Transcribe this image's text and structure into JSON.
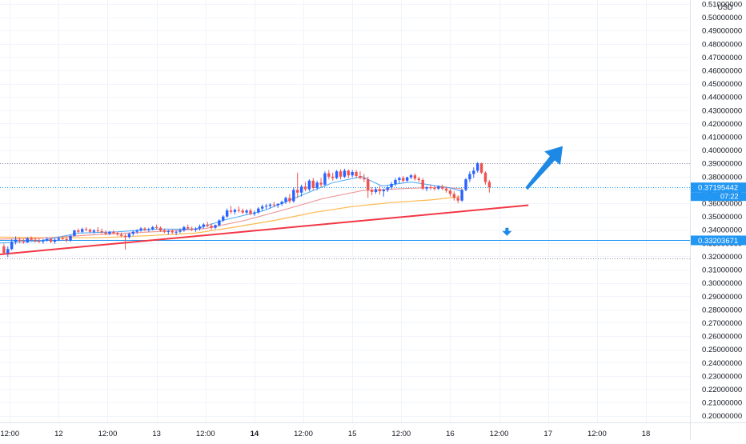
{
  "header": {
    "currency": "USD"
  },
  "price_axis": {
    "ticks": [
      "0.20000000",
      "0.21000000",
      "0.22000000",
      "0.23000000",
      "0.24000000",
      "0.25000000",
      "0.26000000",
      "0.27000000",
      "0.28000000",
      "0.29000000",
      "0.30000000",
      "0.31000000",
      "0.32000000",
      "0.33000000",
      "0.34000000",
      "0.35000000",
      "0.36000000",
      "0.37000000",
      "0.38000000",
      "0.39000000",
      "0.40000000",
      "0.41000000",
      "0.42000000",
      "0.43000000",
      "0.44000000",
      "0.45000000",
      "0.46000000",
      "0.47000000",
      "0.48000000",
      "0.49000000",
      "0.50000000",
      "0.51000000"
    ]
  },
  "time_axis": {
    "labels": [
      {
        "text": "12:00",
        "t": 0.0
      },
      {
        "text": "12",
        "t": 0.5
      },
      {
        "text": "12:00",
        "t": 1.0
      },
      {
        "text": "13",
        "t": 1.5
      },
      {
        "text": "12:00",
        "t": 2.0
      },
      {
        "text": "14",
        "t": 2.5,
        "bold": true
      },
      {
        "text": "12:00",
        "t": 3.0
      },
      {
        "text": "15",
        "t": 3.5
      },
      {
        "text": "12:00",
        "t": 4.0
      },
      {
        "text": "16",
        "t": 4.5
      },
      {
        "text": "12:00",
        "t": 5.0
      },
      {
        "text": "17",
        "t": 5.5
      },
      {
        "text": "12:00",
        "t": 6.0
      },
      {
        "text": "18",
        "t": 6.5
      }
    ]
  },
  "labels": {
    "last_price": "0.37195442",
    "countdown": "07:22",
    "level_price": "0.33203671"
  },
  "colors": {
    "up": "#2962ff",
    "down": "#ef5350",
    "trendline": "#f23645",
    "ema_fast": "#42a5f5",
    "ema_mid": "#ef9a9a",
    "ema_slow": "#ffb74d",
    "last_price_badge": "#2196f3",
    "level_line": "#2196f3",
    "arrow": "#1e88e5"
  },
  "chart_data": {
    "type": "candlestick",
    "currency": "USD",
    "ylim": [
      0.195,
      0.513
    ],
    "xlim": [
      -0.1,
      6.95
    ],
    "last_price": 0.37195442,
    "level_price": 0.33203671,
    "dotted_levels": [
      0.39,
      0.3183
    ],
    "trendline": {
      "x": [
        -0.1,
        5.3
      ],
      "y": [
        0.3215,
        0.3585
      ]
    },
    "projection_up": {
      "from": [
        5.28,
        0.371
      ],
      "to": [
        5.65,
        0.403
      ]
    },
    "projection_down": {
      "at": [
        5.08,
        0.3385
      ]
    },
    "candles": [
      [
        -0.06,
        0.3275,
        0.3295,
        0.3215,
        0.3225
      ],
      [
        -0.02,
        0.3225,
        0.3275,
        0.3195,
        0.3255
      ],
      [
        0.02,
        0.3255,
        0.333,
        0.3245,
        0.331
      ],
      [
        0.06,
        0.331,
        0.335,
        0.329,
        0.3325
      ],
      [
        0.1,
        0.3325,
        0.334,
        0.33,
        0.3315
      ],
      [
        0.14,
        0.3315,
        0.333,
        0.3295,
        0.3305
      ],
      [
        0.18,
        0.3305,
        0.3345,
        0.33,
        0.3335
      ],
      [
        0.22,
        0.3335,
        0.335,
        0.3315,
        0.3325
      ],
      [
        0.26,
        0.3325,
        0.334,
        0.3305,
        0.3315
      ],
      [
        0.3,
        0.3315,
        0.3335,
        0.33,
        0.331
      ],
      [
        0.34,
        0.331,
        0.333,
        0.3295,
        0.332
      ],
      [
        0.38,
        0.332,
        0.3345,
        0.331,
        0.333
      ],
      [
        0.42,
        0.333,
        0.334,
        0.33,
        0.331
      ],
      [
        0.46,
        0.331,
        0.3335,
        0.3295,
        0.3325
      ],
      [
        0.5,
        0.3325,
        0.335,
        0.3315,
        0.3335
      ],
      [
        0.54,
        0.3335,
        0.3355,
        0.332,
        0.333
      ],
      [
        0.58,
        0.333,
        0.3345,
        0.3305,
        0.332
      ],
      [
        0.62,
        0.332,
        0.336,
        0.331,
        0.3355
      ],
      [
        0.66,
        0.3355,
        0.34,
        0.335,
        0.3395
      ],
      [
        0.7,
        0.3395,
        0.341,
        0.337,
        0.3385
      ],
      [
        0.74,
        0.3385,
        0.3415,
        0.3375,
        0.3405
      ],
      [
        0.78,
        0.3405,
        0.342,
        0.339,
        0.34
      ],
      [
        0.82,
        0.34,
        0.341,
        0.3375,
        0.3385
      ],
      [
        0.86,
        0.3385,
        0.3405,
        0.337,
        0.3395
      ],
      [
        0.9,
        0.3395,
        0.342,
        0.338,
        0.339
      ],
      [
        0.94,
        0.339,
        0.341,
        0.337,
        0.338
      ],
      [
        0.98,
        0.338,
        0.3395,
        0.336,
        0.337
      ],
      [
        1.02,
        0.337,
        0.339,
        0.336,
        0.3385
      ],
      [
        1.06,
        0.3385,
        0.3395,
        0.3365,
        0.3375
      ],
      [
        1.1,
        0.3375,
        0.3385,
        0.3355,
        0.3365
      ],
      [
        1.14,
        0.3365,
        0.338,
        0.3345,
        0.3355
      ],
      [
        1.18,
        0.3355,
        0.337,
        0.325,
        0.3345
      ],
      [
        1.22,
        0.3345,
        0.338,
        0.3335,
        0.337
      ],
      [
        1.26,
        0.337,
        0.3395,
        0.3355,
        0.3385
      ],
      [
        1.3,
        0.3385,
        0.3405,
        0.337,
        0.3395
      ],
      [
        1.34,
        0.3395,
        0.342,
        0.3385,
        0.341
      ],
      [
        1.38,
        0.341,
        0.342,
        0.339,
        0.34
      ],
      [
        1.42,
        0.34,
        0.3415,
        0.3385,
        0.3405
      ],
      [
        1.46,
        0.3405,
        0.343,
        0.3395,
        0.342
      ],
      [
        1.5,
        0.342,
        0.344,
        0.3405,
        0.3415
      ],
      [
        1.54,
        0.3415,
        0.3425,
        0.3385,
        0.3395
      ],
      [
        1.58,
        0.3395,
        0.341,
        0.3375,
        0.3385
      ],
      [
        1.62,
        0.3385,
        0.34,
        0.3365,
        0.339
      ],
      [
        1.66,
        0.339,
        0.3405,
        0.337,
        0.338
      ],
      [
        1.7,
        0.338,
        0.3395,
        0.336,
        0.3385
      ],
      [
        1.74,
        0.3385,
        0.341,
        0.3375,
        0.3395
      ],
      [
        1.78,
        0.3395,
        0.343,
        0.3385,
        0.342
      ],
      [
        1.82,
        0.342,
        0.344,
        0.34,
        0.341
      ],
      [
        1.86,
        0.341,
        0.3425,
        0.339,
        0.34
      ],
      [
        1.9,
        0.34,
        0.342,
        0.3385,
        0.341
      ],
      [
        1.94,
        0.341,
        0.344,
        0.3395,
        0.3425
      ],
      [
        1.98,
        0.3425,
        0.345,
        0.341,
        0.344
      ],
      [
        2.02,
        0.344,
        0.346,
        0.342,
        0.343
      ],
      [
        2.06,
        0.343,
        0.345,
        0.34,
        0.3415
      ],
      [
        2.1,
        0.3415,
        0.344,
        0.3405,
        0.3435
      ],
      [
        2.14,
        0.3435,
        0.348,
        0.3425,
        0.347
      ],
      [
        2.18,
        0.347,
        0.351,
        0.346,
        0.35
      ],
      [
        2.22,
        0.35,
        0.356,
        0.349,
        0.3545
      ],
      [
        2.26,
        0.3545,
        0.358,
        0.352,
        0.3535
      ],
      [
        2.3,
        0.3535,
        0.356,
        0.3515,
        0.355
      ],
      [
        2.34,
        0.355,
        0.3575,
        0.353,
        0.3545
      ],
      [
        2.38,
        0.3545,
        0.356,
        0.352,
        0.353
      ],
      [
        2.42,
        0.353,
        0.3555,
        0.3515,
        0.3545
      ],
      [
        2.46,
        0.3545,
        0.356,
        0.351,
        0.352
      ],
      [
        2.5,
        0.352,
        0.3545,
        0.3505,
        0.353
      ],
      [
        2.54,
        0.353,
        0.357,
        0.352,
        0.356
      ],
      [
        2.58,
        0.356,
        0.359,
        0.354,
        0.3575
      ],
      [
        2.62,
        0.3575,
        0.3595,
        0.3555,
        0.358
      ],
      [
        2.66,
        0.358,
        0.36,
        0.356,
        0.359
      ],
      [
        2.7,
        0.359,
        0.361,
        0.357,
        0.3585
      ],
      [
        2.74,
        0.3585,
        0.36,
        0.3565,
        0.3595
      ],
      [
        2.78,
        0.3595,
        0.362,
        0.358,
        0.361
      ],
      [
        2.82,
        0.361,
        0.365,
        0.3595,
        0.364
      ],
      [
        2.86,
        0.364,
        0.367,
        0.36,
        0.3615
      ],
      [
        2.9,
        0.3615,
        0.372,
        0.3605,
        0.37
      ],
      [
        2.94,
        0.37,
        0.383,
        0.364,
        0.368
      ],
      [
        2.98,
        0.368,
        0.374,
        0.365,
        0.3725
      ],
      [
        3.02,
        0.3725,
        0.376,
        0.369,
        0.3705
      ],
      [
        3.06,
        0.3705,
        0.378,
        0.369,
        0.377
      ],
      [
        3.1,
        0.377,
        0.379,
        0.37,
        0.3715
      ],
      [
        3.14,
        0.3715,
        0.377,
        0.37,
        0.3755
      ],
      [
        3.18,
        0.3755,
        0.379,
        0.372,
        0.374
      ],
      [
        3.22,
        0.374,
        0.384,
        0.3725,
        0.3825
      ],
      [
        3.26,
        0.3825,
        0.385,
        0.378,
        0.38
      ],
      [
        3.3,
        0.38,
        0.383,
        0.377,
        0.379
      ],
      [
        3.34,
        0.379,
        0.385,
        0.378,
        0.384
      ],
      [
        3.38,
        0.384,
        0.3855,
        0.378,
        0.38
      ],
      [
        3.42,
        0.38,
        0.386,
        0.379,
        0.3845
      ],
      [
        3.46,
        0.3845,
        0.3855,
        0.379,
        0.381
      ],
      [
        3.5,
        0.381,
        0.385,
        0.3795,
        0.3835
      ],
      [
        3.54,
        0.3835,
        0.385,
        0.379,
        0.3805
      ],
      [
        3.58,
        0.3805,
        0.384,
        0.378,
        0.379
      ],
      [
        3.62,
        0.379,
        0.382,
        0.376,
        0.378
      ],
      [
        3.66,
        0.378,
        0.38,
        0.364,
        0.37
      ],
      [
        3.7,
        0.37,
        0.372,
        0.366,
        0.3685
      ],
      [
        3.74,
        0.3685,
        0.372,
        0.367,
        0.3705
      ],
      [
        3.78,
        0.3705,
        0.373,
        0.3665,
        0.369
      ],
      [
        3.82,
        0.369,
        0.371,
        0.365,
        0.37
      ],
      [
        3.86,
        0.37,
        0.373,
        0.3685,
        0.372
      ],
      [
        3.9,
        0.372,
        0.376,
        0.3705,
        0.3745
      ],
      [
        3.94,
        0.3745,
        0.379,
        0.373,
        0.3775
      ],
      [
        3.98,
        0.3775,
        0.38,
        0.375,
        0.379
      ],
      [
        4.02,
        0.379,
        0.3805,
        0.3755,
        0.377
      ],
      [
        4.06,
        0.377,
        0.38,
        0.376,
        0.3795
      ],
      [
        4.1,
        0.3795,
        0.382,
        0.378,
        0.381
      ],
      [
        4.14,
        0.381,
        0.3825,
        0.377,
        0.3785
      ],
      [
        4.18,
        0.3785,
        0.38,
        0.376,
        0.3775
      ],
      [
        4.22,
        0.3775,
        0.379,
        0.37,
        0.371
      ],
      [
        4.26,
        0.371,
        0.373,
        0.369,
        0.372
      ],
      [
        4.3,
        0.372,
        0.374,
        0.37,
        0.3715
      ],
      [
        4.34,
        0.3715,
        0.373,
        0.3695,
        0.371
      ],
      [
        4.38,
        0.371,
        0.3735,
        0.37,
        0.3725
      ],
      [
        4.42,
        0.3725,
        0.374,
        0.37,
        0.371
      ],
      [
        4.46,
        0.371,
        0.3725,
        0.368,
        0.3695
      ],
      [
        4.5,
        0.3695,
        0.371,
        0.365,
        0.367
      ],
      [
        4.54,
        0.367,
        0.369,
        0.362,
        0.364
      ],
      [
        4.58,
        0.364,
        0.366,
        0.36,
        0.362
      ],
      [
        4.62,
        0.362,
        0.371,
        0.361,
        0.37
      ],
      [
        4.66,
        0.37,
        0.379,
        0.369,
        0.378
      ],
      [
        4.7,
        0.378,
        0.384,
        0.376,
        0.382
      ],
      [
        4.74,
        0.382,
        0.387,
        0.379,
        0.3845
      ],
      [
        4.78,
        0.3845,
        0.391,
        0.383,
        0.39
      ],
      [
        4.82,
        0.39,
        0.3905,
        0.382,
        0.383
      ],
      [
        4.86,
        0.383,
        0.384,
        0.374,
        0.376
      ],
      [
        4.9,
        0.376,
        0.3775,
        0.368,
        0.372
      ]
    ],
    "ema_fast": [
      [
        -0.1,
        0.33
      ],
      [
        0.3,
        0.3315
      ],
      [
        0.7,
        0.3375
      ],
      [
        1.1,
        0.3385
      ],
      [
        1.5,
        0.3405
      ],
      [
        1.9,
        0.3405
      ],
      [
        2.2,
        0.3475
      ],
      [
        2.6,
        0.3545
      ],
      [
        3.0,
        0.3665
      ],
      [
        3.3,
        0.3755
      ],
      [
        3.6,
        0.38
      ],
      [
        3.8,
        0.373
      ],
      [
        4.1,
        0.376
      ],
      [
        4.5,
        0.3715
      ],
      [
        4.62,
        0.369
      ]
    ],
    "ema_mid": [
      [
        -0.1,
        0.333
      ],
      [
        0.3,
        0.3335
      ],
      [
        0.8,
        0.336
      ],
      [
        1.2,
        0.3375
      ],
      [
        1.6,
        0.339
      ],
      [
        2.0,
        0.341
      ],
      [
        2.4,
        0.347
      ],
      [
        2.8,
        0.355
      ],
      [
        3.2,
        0.3635
      ],
      [
        3.6,
        0.3695
      ],
      [
        4.0,
        0.371
      ],
      [
        4.4,
        0.372
      ],
      [
        4.62,
        0.371
      ]
    ],
    "ema_slow": [
      [
        -0.1,
        0.3345
      ],
      [
        0.4,
        0.334
      ],
      [
        0.9,
        0.334
      ],
      [
        1.4,
        0.3355
      ],
      [
        1.9,
        0.3375
      ],
      [
        2.3,
        0.342
      ],
      [
        2.7,
        0.347
      ],
      [
        3.1,
        0.353
      ],
      [
        3.5,
        0.3575
      ],
      [
        3.9,
        0.3605
      ],
      [
        4.3,
        0.3625
      ],
      [
        4.62,
        0.365
      ]
    ]
  }
}
